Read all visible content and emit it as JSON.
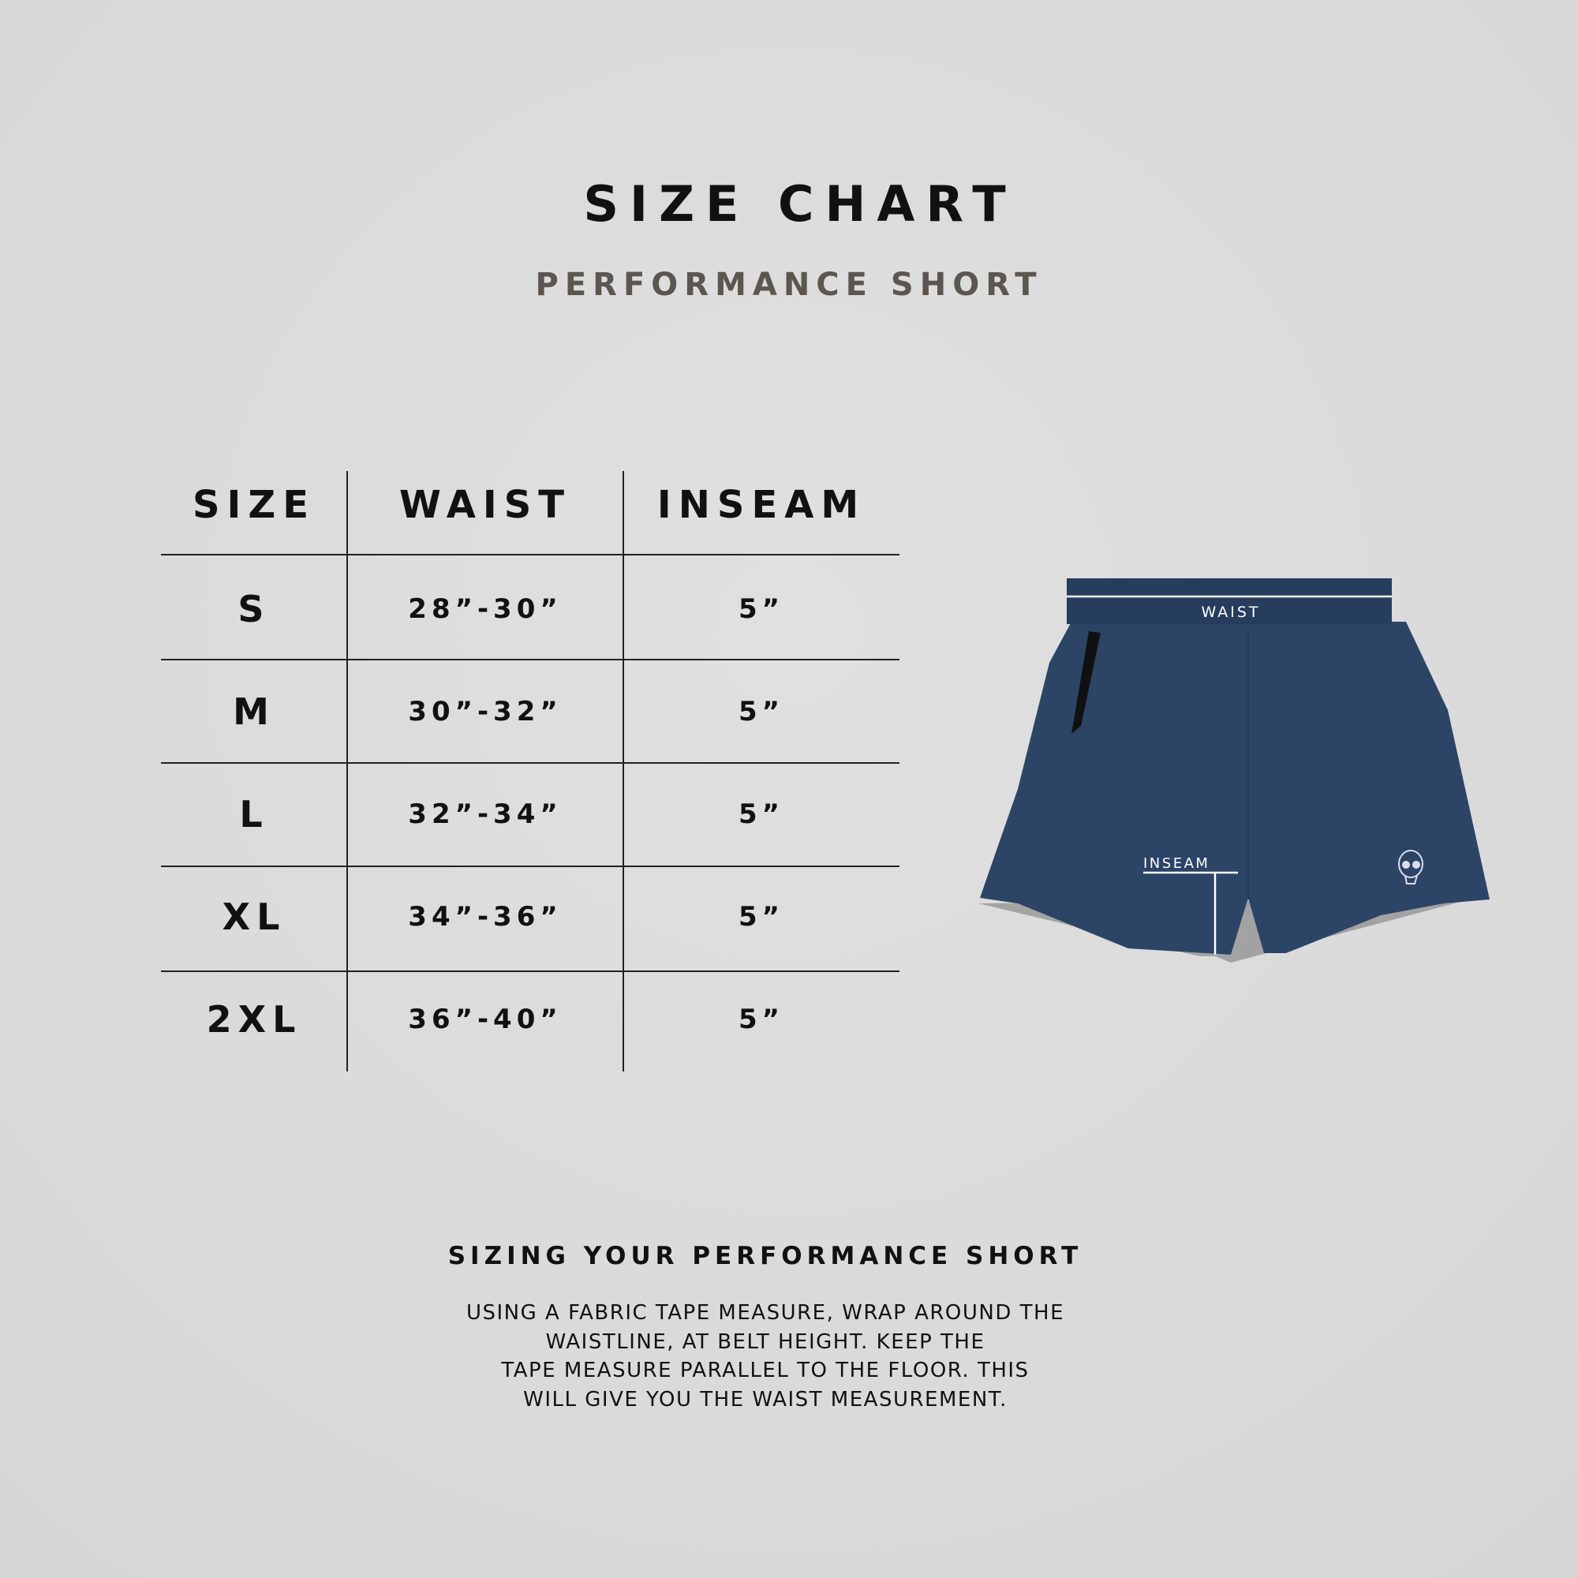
{
  "header": {
    "title": "SIZE CHART",
    "subtitle": "PERFORMANCE SHORT"
  },
  "table": {
    "columns": [
      "SIZE",
      "WAIST",
      "INSEAM"
    ],
    "rows": [
      {
        "size": "S",
        "waist": "28”-30”",
        "inseam": "5”"
      },
      {
        "size": "M",
        "waist": "30”-32”",
        "inseam": "5”"
      },
      {
        "size": "L",
        "waist": "32”-34”",
        "inseam": "5”"
      },
      {
        "size": "XL",
        "waist": "34”-36”",
        "inseam": "5”"
      },
      {
        "size": "2XL",
        "waist": "36”-40”",
        "inseam": "5”"
      }
    ]
  },
  "diagram": {
    "waist_label": "WAIST",
    "inseam_label": "INSEAM",
    "garment_color": "#2c4466"
  },
  "howto": {
    "heading": "SIZING YOUR PERFORMANCE SHORT",
    "lines": [
      "USING A FABRIC TAPE MEASURE, WRAP AROUND THE",
      "WAISTLINE, AT BELT HEIGHT. KEEP THE",
      "TAPE MEASURE PARALLEL TO THE FLOOR. THIS",
      "WILL GIVE YOU THE WAIST MEASUREMENT."
    ]
  }
}
